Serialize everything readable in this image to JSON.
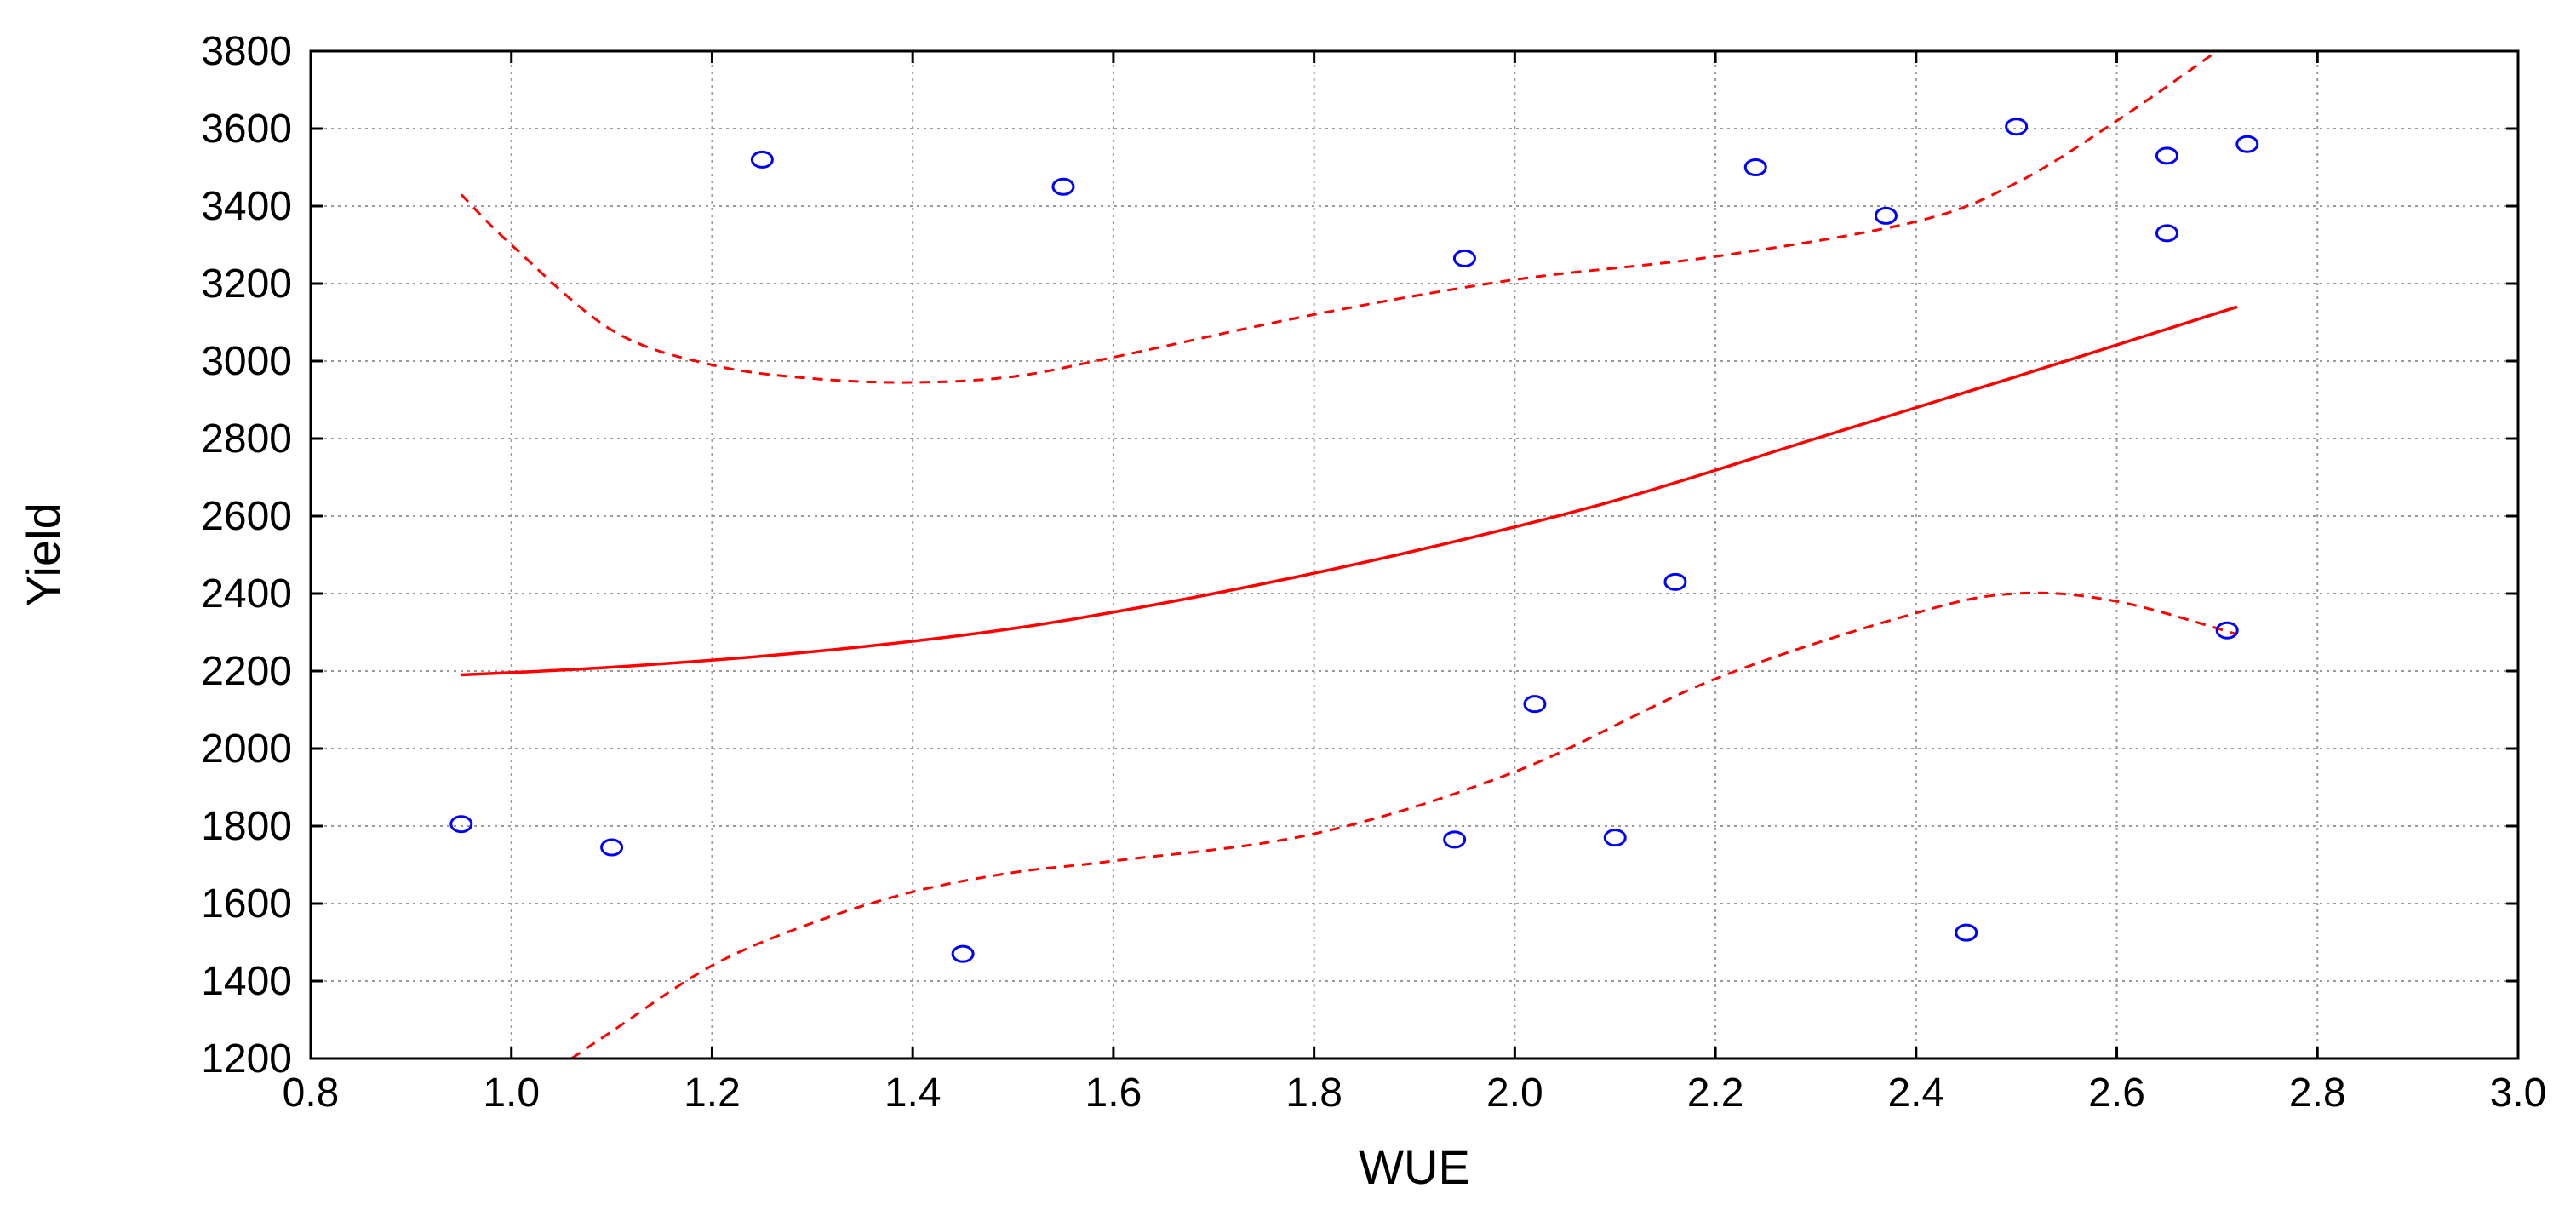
{
  "chart_data": {
    "type": "scatter",
    "title": "",
    "xlabel": "WUE",
    "ylabel": "Yield",
    "xlim": [
      0.8,
      3.0
    ],
    "ylim": [
      1200,
      3800
    ],
    "xticks": [
      0.8,
      1.0,
      1.2,
      1.4,
      1.6,
      1.8,
      2.0,
      2.2,
      2.4,
      2.6,
      2.8,
      3.0
    ],
    "xtick_labels": [
      "0.8",
      "1.0",
      "1.2",
      "1.4",
      "1.6",
      "1.8",
      "2.0",
      "2.2",
      "2.4",
      "2.6",
      "2.8",
      "3.0"
    ],
    "yticks": [
      1200,
      1400,
      1600,
      1800,
      2000,
      2200,
      2400,
      2600,
      2800,
      3000,
      3200,
      3400,
      3600,
      3800
    ],
    "ytick_labels": [
      "1200",
      "1400",
      "1600",
      "1800",
      "2000",
      "2200",
      "2400",
      "2600",
      "2800",
      "3000",
      "3200",
      "3400",
      "3600",
      "3800"
    ],
    "grid": true,
    "points": [
      {
        "x": 0.95,
        "y": 1805
      },
      {
        "x": 1.1,
        "y": 1745
      },
      {
        "x": 1.25,
        "y": 3520
      },
      {
        "x": 1.45,
        "y": 1470
      },
      {
        "x": 1.55,
        "y": 3450
      },
      {
        "x": 1.94,
        "y": 1765
      },
      {
        "x": 1.95,
        "y": 3265
      },
      {
        "x": 2.02,
        "y": 2115
      },
      {
        "x": 2.1,
        "y": 1770
      },
      {
        "x": 2.16,
        "y": 2430
      },
      {
        "x": 2.24,
        "y": 3500
      },
      {
        "x": 2.37,
        "y": 3375
      },
      {
        "x": 2.45,
        "y": 1525
      },
      {
        "x": 2.5,
        "y": 3605
      },
      {
        "x": 2.65,
        "y": 3530
      },
      {
        "x": 2.65,
        "y": 3330
      },
      {
        "x": 2.71,
        "y": 2305
      },
      {
        "x": 2.73,
        "y": 3560
      }
    ],
    "fit": {
      "x": [
        0.95,
        1.1,
        1.3,
        1.5,
        1.7,
        1.9,
        2.1,
        2.3,
        2.5,
        2.72
      ],
      "y": [
        2190,
        2210,
        2250,
        2310,
        2400,
        2510,
        2640,
        2800,
        2960,
        3140
      ]
    },
    "upper_band": {
      "x": [
        0.95,
        1.0,
        1.1,
        1.2,
        1.3,
        1.4,
        1.5,
        1.6,
        1.8,
        2.0,
        2.2,
        2.4,
        2.5,
        2.6,
        2.7
      ],
      "y": [
        3430,
        3300,
        3080,
        2990,
        2955,
        2945,
        2960,
        3010,
        3120,
        3210,
        3270,
        3360,
        3460,
        3620,
        3800
      ]
    },
    "lower_band": {
      "x": [
        1.06,
        1.1,
        1.2,
        1.3,
        1.4,
        1.5,
        1.6,
        1.8,
        2.0,
        2.2,
        2.4,
        2.5,
        2.6,
        2.72
      ],
      "y": [
        1200,
        1270,
        1440,
        1550,
        1630,
        1680,
        1710,
        1780,
        1940,
        2180,
        2350,
        2400,
        2380,
        2295
      ]
    },
    "colors": {
      "points": "#0000ff",
      "fit": "#ff0000",
      "bands": "#ff0000"
    }
  }
}
